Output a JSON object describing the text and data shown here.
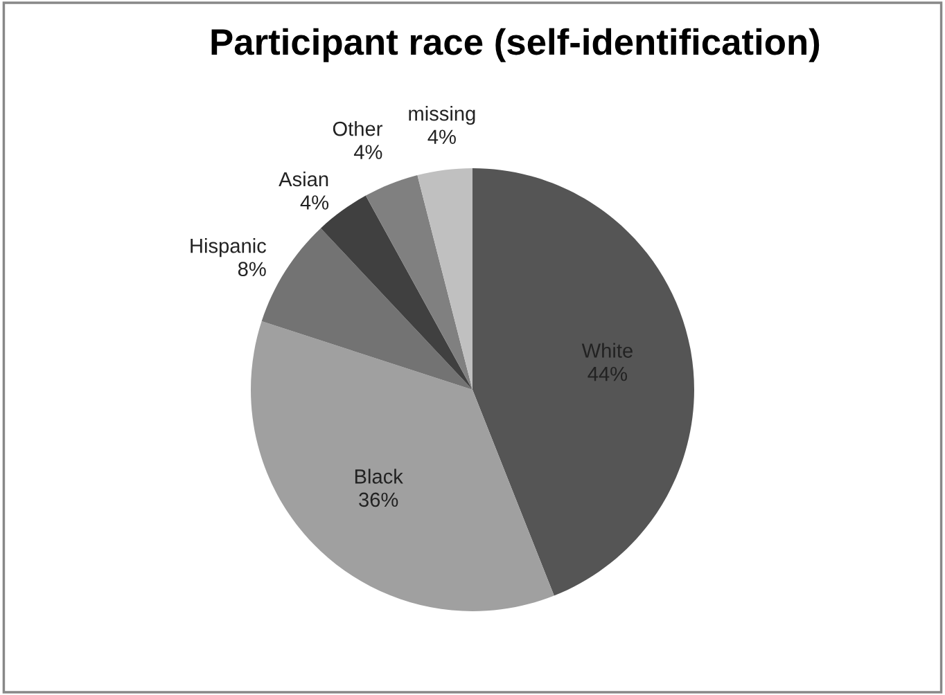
{
  "chart_data": {
    "type": "pie",
    "title": "Participant race (self-identification)",
    "categories": [
      "White",
      "Black",
      "Hispanic",
      "Asian",
      "Other",
      "missing"
    ],
    "values": [
      44,
      36,
      8,
      4,
      4,
      4
    ],
    "value_labels": [
      "44%",
      "36%",
      "8%",
      "4%",
      "4%",
      "4%"
    ],
    "colors": [
      "#555555",
      "#a0a0a0",
      "#737373",
      "#404040",
      "#808080",
      "#c0c0c0"
    ]
  }
}
